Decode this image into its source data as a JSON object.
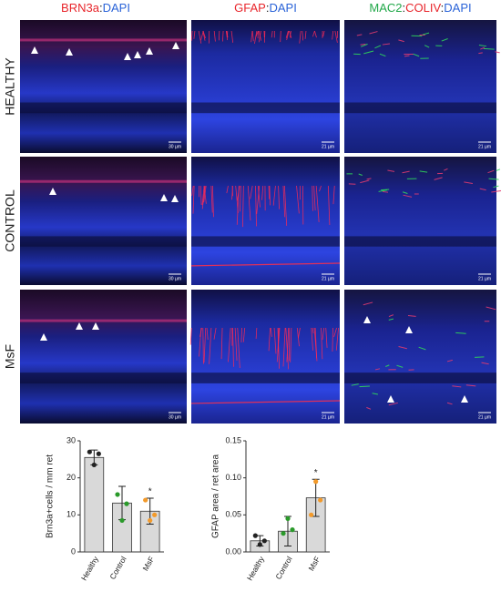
{
  "figure": {
    "column_headers": [
      [
        {
          "text": "BRN3a",
          "color": "#e8252b"
        },
        {
          "text": ":",
          "color": "#222222"
        },
        {
          "text": "DAPI",
          "color": "#2a63d8"
        }
      ],
      [
        {
          "text": "GFAP",
          "color": "#e8252b"
        },
        {
          "text": ":",
          "color": "#222222"
        },
        {
          "text": "DAPI",
          "color": "#2a63d8"
        }
      ],
      [
        {
          "text": "MAC2",
          "color": "#22a84a"
        },
        {
          "text": ":",
          "color": "#222222"
        },
        {
          "text": "COLIV",
          "color": "#e8252b"
        },
        {
          "text": ":",
          "color": "#222222"
        },
        {
          "text": "DAPI",
          "color": "#2a63d8"
        }
      ]
    ],
    "row_labels": [
      "HEALTHY",
      "CONTROL",
      "MsF"
    ],
    "scale_bars": [
      [
        "30 µm",
        "21 µm",
        "21 µm"
      ],
      [
        "30 µm",
        "21 µm",
        "21 µm"
      ],
      [
        "30 µm",
        "21 µm",
        "21 µm"
      ]
    ]
  },
  "chart_data": [
    {
      "type": "bar",
      "ylabel": "Brn3a+cells / mm ret",
      "categories": [
        "Healthy",
        "Control",
        "MsF"
      ],
      "values": [
        25.5,
        13.2,
        11
      ],
      "errors": [
        2,
        4.5,
        3.5
      ],
      "points": [
        [
          27,
          23.5,
          26.5
        ],
        [
          15.5,
          8.5,
          13
        ],
        [
          14,
          8.5,
          10
        ]
      ],
      "point_colors": [
        "#222222",
        "#2a9a2a",
        "#f39a2a"
      ],
      "color": "#d9d9d9",
      "ylim": [
        0,
        30
      ],
      "yticks": [
        0,
        10,
        20,
        30
      ],
      "annotations": [
        {
          "text": "*",
          "category": "MsF"
        }
      ]
    },
    {
      "type": "bar",
      "ylabel": "GFAP area / ret area",
      "categories": [
        "Healthy",
        "Control",
        "MsF"
      ],
      "values": [
        0.015,
        0.028,
        0.073
      ],
      "errors": [
        0.007,
        0.02,
        0.025
      ],
      "points": [
        [
          0.022,
          0.01,
          0.015
        ],
        [
          0.025,
          0.045,
          0.03
        ],
        [
          0.05,
          0.095,
          0.07
        ]
      ],
      "point_colors": [
        "#222222",
        "#2a9a2a",
        "#f39a2a"
      ],
      "color": "#d9d9d9",
      "ylim": [
        0,
        0.15
      ],
      "yticks": [
        {
          "value": 0,
          "label": "0.00"
        },
        0.05,
        {
          "value": 0.1,
          "label": "0.10"
        },
        0.15
      ],
      "annotations": [
        {
          "text": "*",
          "category": "MsF"
        }
      ]
    }
  ]
}
